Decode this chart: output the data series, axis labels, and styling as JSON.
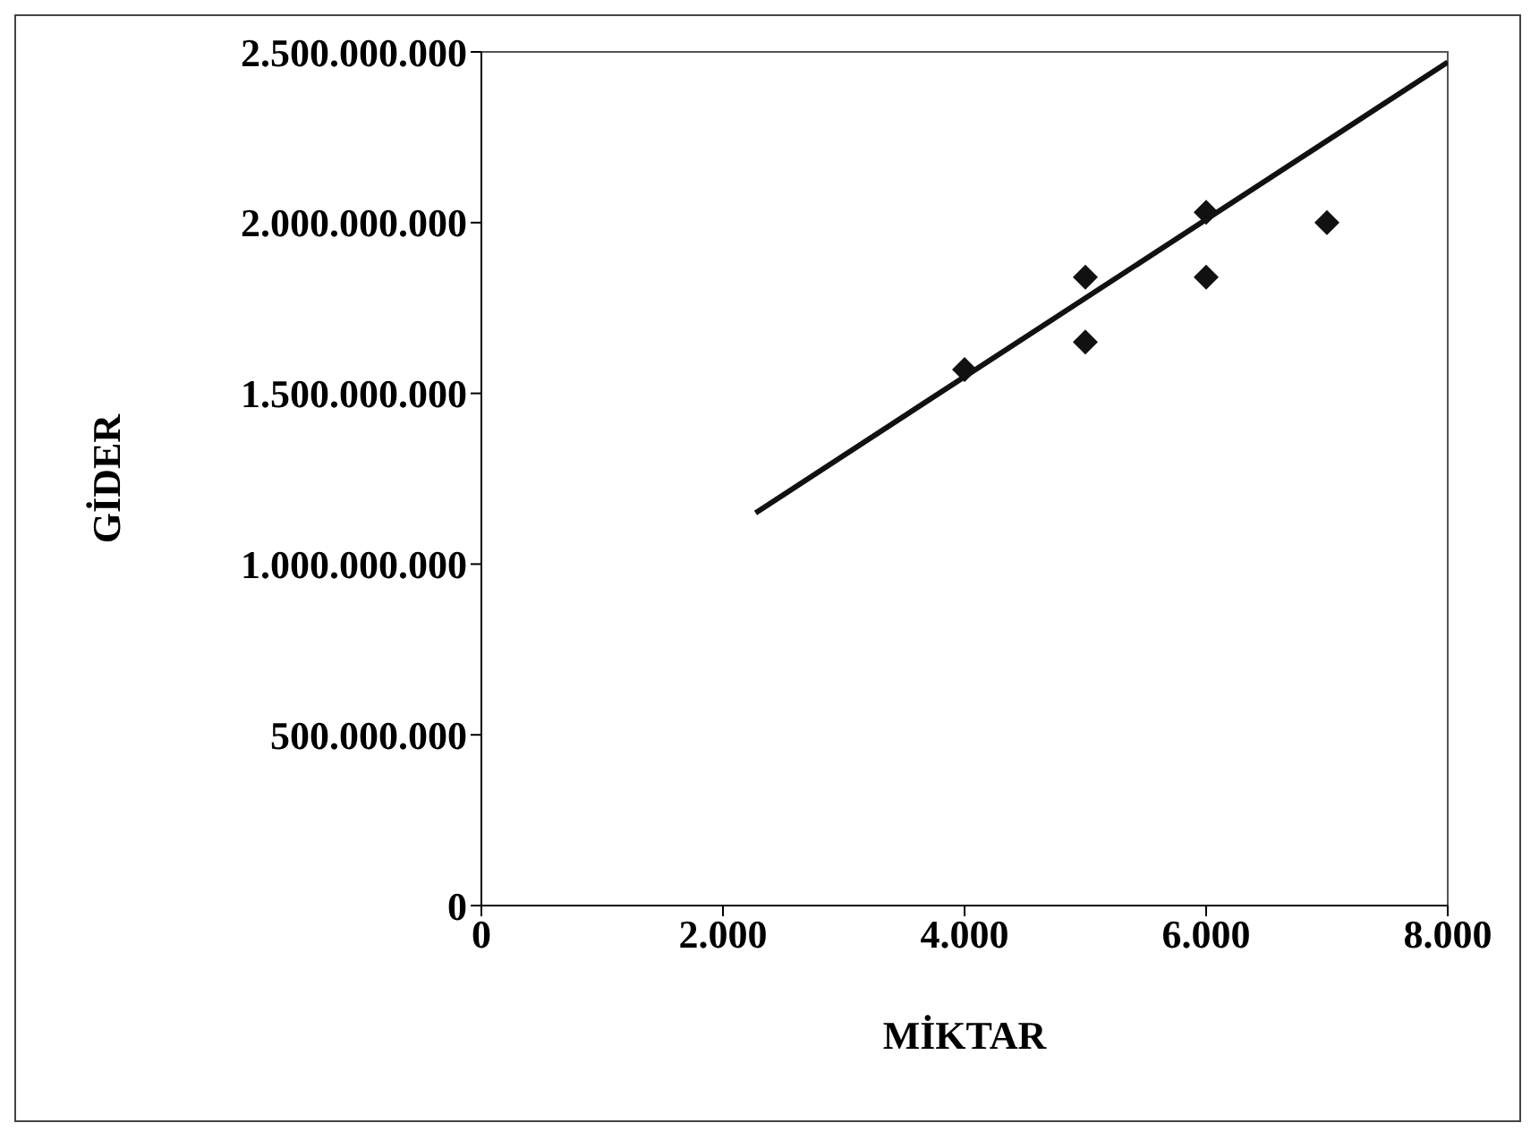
{
  "chart_data": {
    "type": "scatter",
    "xlabel": "MİKTAR",
    "ylabel": "GİDER",
    "marker": "diamond",
    "grid": false,
    "legend": false,
    "xlim": [
      0,
      8000
    ],
    "xticks": [
      {
        "value": 0,
        "label": "0"
      },
      {
        "value": 2000,
        "label": "2.000"
      },
      {
        "value": 4000,
        "label": "4.000"
      },
      {
        "value": 6000,
        "label": "6.000"
      },
      {
        "value": 8000,
        "label": "8.000"
      }
    ],
    "ylim": [
      0,
      2500000000
    ],
    "yticks": [
      {
        "value": 0,
        "label": "0"
      },
      {
        "value": 500000000,
        "label": "500.000.000"
      },
      {
        "value": 1000000000,
        "label": "1.000.000.000"
      },
      {
        "value": 1500000000,
        "label": "1.500.000.000"
      },
      {
        "value": 2000000000,
        "label": "2.000.000.000"
      },
      {
        "value": 2500000000,
        "label": "2.500.000.000"
      }
    ],
    "series": [
      {
        "color": "#111111",
        "x": [
          4000,
          5000,
          5000,
          6000,
          6000,
          7000
        ],
        "values": [
          1570000000,
          1840000000,
          1650000000,
          2030000000,
          1840000000,
          2000000000
        ]
      },
      {
        "type": "line",
        "marker": "none",
        "color": "#111111",
        "x": [
          2270,
          8000
        ],
        "values": [
          1150000000,
          2470000000
        ]
      }
    ]
  }
}
